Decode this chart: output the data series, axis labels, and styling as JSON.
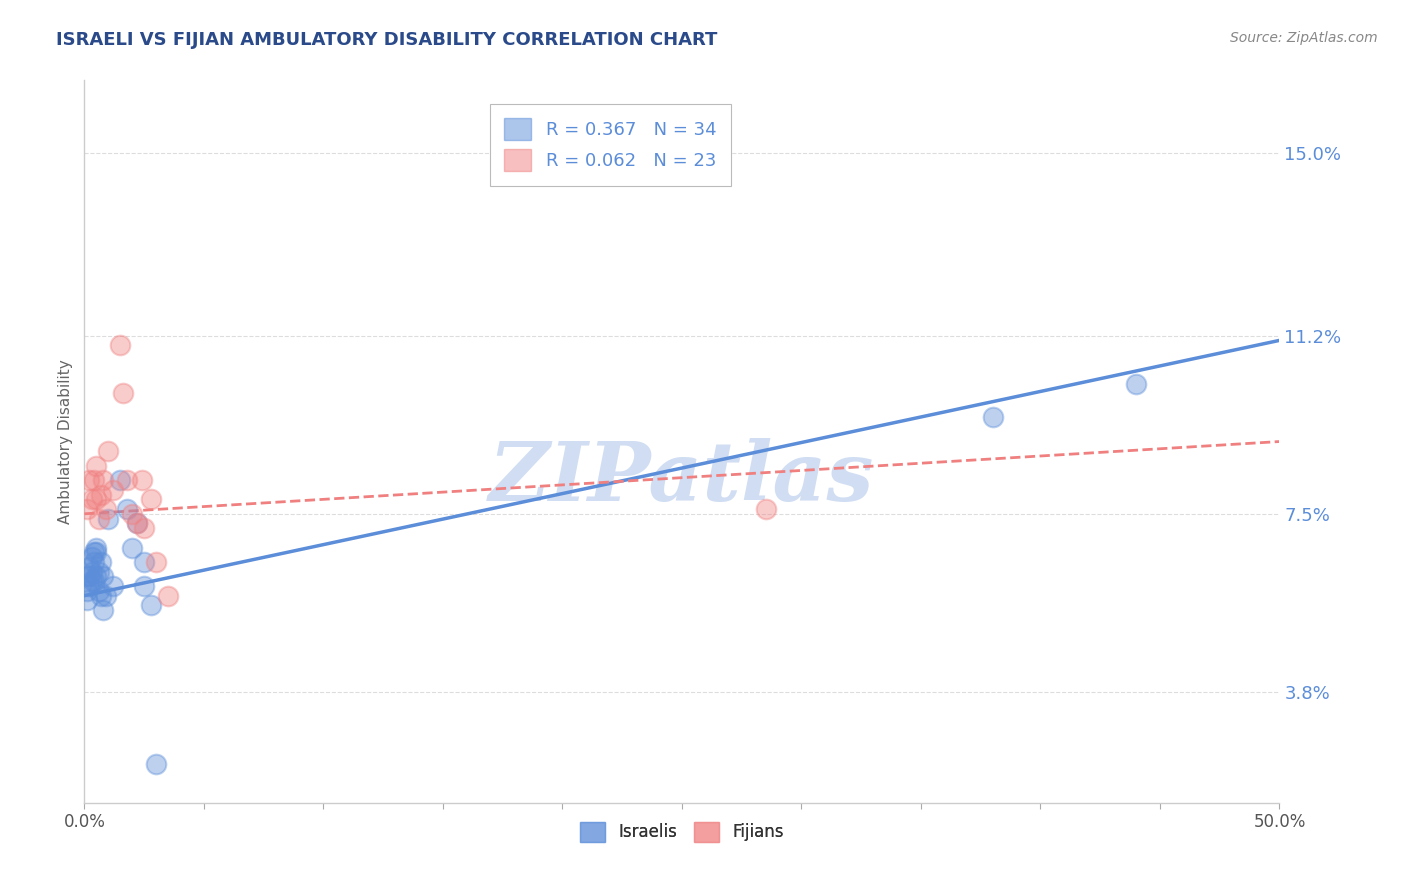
{
  "title": "ISRAELI VS FIJIAN AMBULATORY DISABILITY CORRELATION CHART",
  "source": "Source: ZipAtlas.com",
  "ylabel": "Ambulatory Disability",
  "xlim": [
    0.0,
    0.5
  ],
  "ylim": [
    0.015,
    0.165
  ],
  "yticks": [
    0.038,
    0.075,
    0.112,
    0.15
  ],
  "ytick_labels": [
    "3.8%",
    "7.5%",
    "11.2%",
    "15.0%"
  ],
  "xticks": [
    0.0,
    0.05,
    0.1,
    0.15,
    0.2,
    0.25,
    0.3,
    0.35,
    0.4,
    0.45,
    0.5
  ],
  "xtick_labels": [
    "0.0%",
    "",
    "",
    "",
    "",
    "",
    "",
    "",
    "",
    "",
    "50.0%"
  ],
  "israeli_color": "#5b8dd9",
  "fijian_color": "#f08080",
  "israeli_R": 0.367,
  "israeli_N": 34,
  "fijian_R": 0.062,
  "fijian_N": 23,
  "watermark": "ZIPatlas",
  "watermark_color": "#c8d8f0",
  "israeli_points_x": [
    0.001,
    0.001,
    0.001,
    0.002,
    0.002,
    0.002,
    0.003,
    0.003,
    0.003,
    0.004,
    0.004,
    0.004,
    0.005,
    0.005,
    0.005,
    0.006,
    0.006,
    0.007,
    0.007,
    0.008,
    0.008,
    0.009,
    0.01,
    0.012,
    0.015,
    0.018,
    0.02,
    0.022,
    0.025,
    0.025,
    0.028,
    0.03,
    0.38,
    0.44
  ],
  "israeli_points_y": [
    0.062,
    0.059,
    0.057,
    0.064,
    0.062,
    0.06,
    0.066,
    0.063,
    0.061,
    0.067,
    0.065,
    0.061,
    0.068,
    0.067,
    0.062,
    0.059,
    0.063,
    0.065,
    0.058,
    0.062,
    0.055,
    0.058,
    0.074,
    0.06,
    0.082,
    0.076,
    0.068,
    0.073,
    0.065,
    0.06,
    0.056,
    0.023,
    0.095,
    0.102
  ],
  "fijian_points_x": [
    0.001,
    0.002,
    0.003,
    0.004,
    0.005,
    0.005,
    0.006,
    0.007,
    0.008,
    0.009,
    0.01,
    0.012,
    0.015,
    0.016,
    0.018,
    0.02,
    0.022,
    0.024,
    0.025,
    0.028,
    0.03,
    0.035,
    0.285
  ],
  "fijian_points_y": [
    0.076,
    0.082,
    0.078,
    0.082,
    0.085,
    0.078,
    0.074,
    0.079,
    0.082,
    0.076,
    0.088,
    0.08,
    0.11,
    0.1,
    0.082,
    0.075,
    0.073,
    0.082,
    0.072,
    0.078,
    0.065,
    0.058,
    0.076
  ],
  "blue_line_x": [
    0.0,
    0.5
  ],
  "blue_line_y": [
    0.058,
    0.111
  ],
  "pink_line_x": [
    0.0,
    0.5
  ],
  "pink_line_y": [
    0.075,
    0.09
  ],
  "background_color": "#ffffff",
  "grid_color": "#dddddd",
  "title_color": "#2a4a8a",
  "tick_color": "#5b8dd9",
  "source_color": "#888888"
}
